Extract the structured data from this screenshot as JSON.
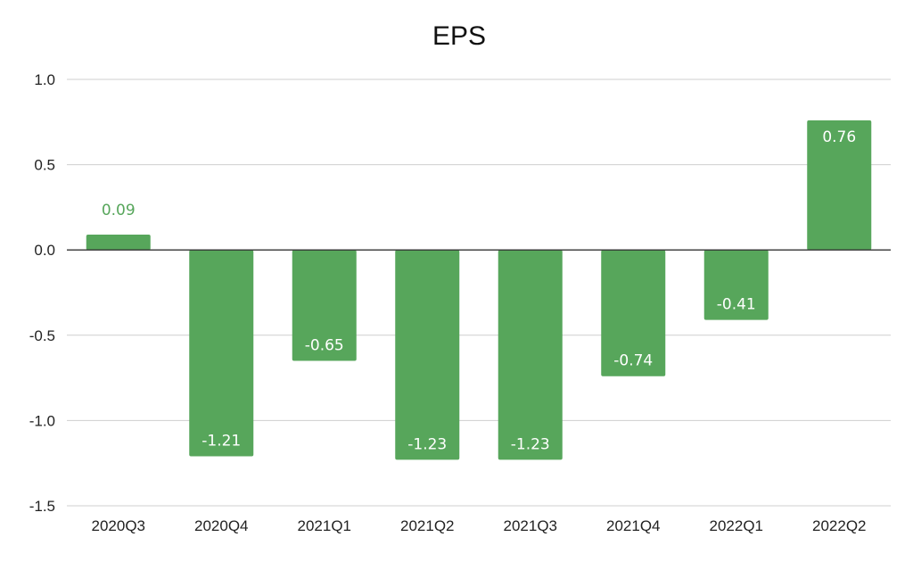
{
  "chart_data": {
    "type": "bar",
    "title": "EPS",
    "xlabel": "",
    "ylabel": "",
    "categories": [
      "2020Q3",
      "2020Q4",
      "2021Q1",
      "2021Q2",
      "2021Q3",
      "2021Q4",
      "2022Q1",
      "2022Q2"
    ],
    "values": [
      0.09,
      -1.21,
      -0.65,
      -1.23,
      -1.23,
      -0.74,
      -0.41,
      0.76
    ],
    "data_labels": [
      "0.09",
      "-1.21",
      "-0.65",
      "-1.23",
      "-1.23",
      "-0.74",
      "-0.41",
      "0.76"
    ],
    "ylim": [
      -1.5,
      1.0
    ],
    "yticks": [
      1.0,
      0.5,
      0.0,
      -0.5,
      -1.0,
      -1.5
    ],
    "ytick_labels": [
      "1.0",
      "0.5",
      "0.0",
      "-0.5",
      "-1.0",
      "-1.5"
    ],
    "grid": true,
    "legend": "none",
    "colors": {
      "bar": "#57a65b",
      "label_outside": "#57a65b",
      "label_inside": "#ffffff",
      "zero_line": "#333333",
      "grid": "#cfcfcf"
    }
  }
}
